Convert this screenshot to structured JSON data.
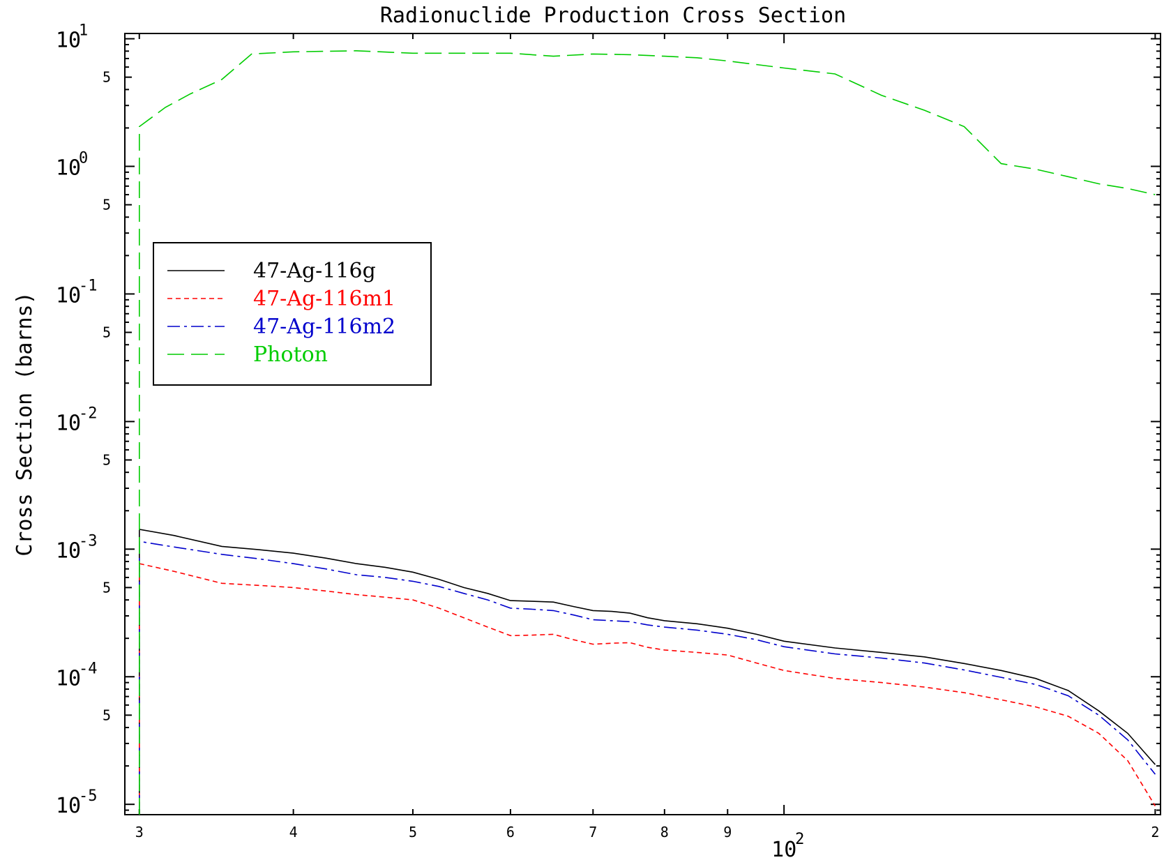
{
  "chart_data": {
    "type": "line",
    "title": "Radionuclide Production Cross Section",
    "xlabel": "",
    "ylabel": "Cross Section (barns)",
    "xscale": "log",
    "yscale": "log",
    "xlim": [
      29.2,
      202
    ],
    "ylim": [
      8.3e-06,
      11
    ],
    "x_ticks": [
      {
        "value": 30,
        "label": "3"
      },
      {
        "value": 40,
        "label": "4"
      },
      {
        "value": 50,
        "label": "5"
      },
      {
        "value": 60,
        "label": "6"
      },
      {
        "value": 70,
        "label": "7"
      },
      {
        "value": 80,
        "label": "8"
      },
      {
        "value": 90,
        "label": "9"
      },
      {
        "value": 100,
        "label": "10",
        "exp": "2"
      },
      {
        "value": 200,
        "label": "2"
      }
    ],
    "y_ticks": [
      {
        "value": 10,
        "label": "10",
        "exp": "1"
      },
      {
        "value": 5,
        "label": "5"
      },
      {
        "value": 1,
        "label": "10",
        "exp": "0"
      },
      {
        "value": 0.5,
        "label": "5"
      },
      {
        "value": 0.1,
        "label": "10",
        "exp": "-1"
      },
      {
        "value": 0.05,
        "label": "5"
      },
      {
        "value": 0.01,
        "label": "10",
        "exp": "-2"
      },
      {
        "value": 0.005,
        "label": "5"
      },
      {
        "value": 0.001,
        "label": "10",
        "exp": "-3"
      },
      {
        "value": 0.0005,
        "label": "5"
      },
      {
        "value": 0.0001,
        "label": "10",
        "exp": "-4"
      },
      {
        "value": 5e-05,
        "label": "5"
      },
      {
        "value": 1e-05,
        "label": "10",
        "exp": "-5"
      }
    ],
    "legend_position": "upper-left",
    "series": [
      {
        "name": "47-Ag-116g",
        "color": "#000000",
        "style": "solid",
        "points": [
          [
            30,
            8.3e-06
          ],
          [
            30,
            0.00143
          ],
          [
            32,
            0.00128
          ],
          [
            35,
            0.00105
          ],
          [
            37.5,
            0.00099
          ],
          [
            40,
            0.00093
          ],
          [
            42.5,
            0.00085
          ],
          [
            45,
            0.00077
          ],
          [
            47.5,
            0.00072
          ],
          [
            50,
            0.00066
          ],
          [
            52.5,
            0.00058
          ],
          [
            55,
            0.0005
          ],
          [
            57.5,
            0.00045
          ],
          [
            60,
            0.000395
          ],
          [
            62.5,
            0.00039
          ],
          [
            65,
            0.000385
          ],
          [
            67.5,
            0.000355
          ],
          [
            70,
            0.00033
          ],
          [
            72.5,
            0.000325
          ],
          [
            75,
            0.000315
          ],
          [
            77.5,
            0.00029
          ],
          [
            80,
            0.000275
          ],
          [
            85,
            0.00026
          ],
          [
            90,
            0.00024
          ],
          [
            95,
            0.000215
          ],
          [
            100,
            0.00019
          ],
          [
            110,
            0.000168
          ],
          [
            120,
            0.000155
          ],
          [
            130,
            0.000143
          ],
          [
            140,
            0.000127
          ],
          [
            150,
            0.000112
          ],
          [
            160,
            9.7e-05
          ],
          [
            170,
            7.8e-05
          ],
          [
            180,
            5.4e-05
          ],
          [
            190,
            3.6e-05
          ],
          [
            200,
            2.05e-05
          ]
        ]
      },
      {
        "name": "47-Ag-116m1",
        "color": "#ff0000",
        "style": "dashed",
        "points": [
          [
            30,
            8.3e-06
          ],
          [
            30,
            0.00077
          ],
          [
            32,
            0.00067
          ],
          [
            35,
            0.00054
          ],
          [
            37.5,
            0.00052
          ],
          [
            40,
            0.0005
          ],
          [
            42.5,
            0.00047
          ],
          [
            45,
            0.00044
          ],
          [
            47.5,
            0.00042
          ],
          [
            50,
            0.0004
          ],
          [
            52.5,
            0.000345
          ],
          [
            55,
            0.00029
          ],
          [
            57.5,
            0.000245
          ],
          [
            60,
            0.00021
          ],
          [
            62.5,
            0.000212
          ],
          [
            65,
            0.000215
          ],
          [
            67.5,
            0.000195
          ],
          [
            70,
            0.00018
          ],
          [
            72.5,
            0.000183
          ],
          [
            75,
            0.000185
          ],
          [
            77.5,
            0.00017
          ],
          [
            80,
            0.000162
          ],
          [
            85,
            0.000155
          ],
          [
            90,
            0.000148
          ],
          [
            95,
            0.000128
          ],
          [
            100,
            0.000112
          ],
          [
            110,
            9.7e-05
          ],
          [
            120,
            9e-05
          ],
          [
            130,
            8.3e-05
          ],
          [
            140,
            7.5e-05
          ],
          [
            150,
            6.6e-05
          ],
          [
            160,
            5.8e-05
          ],
          [
            170,
            4.9e-05
          ],
          [
            180,
            3.6e-05
          ],
          [
            190,
            2.2e-05
          ],
          [
            200,
            9.7e-06
          ]
        ]
      },
      {
        "name": "47-Ag-116m2",
        "color": "#0000cc",
        "style": "dashdot",
        "points": [
          [
            30,
            8.3e-06
          ],
          [
            30,
            0.00115
          ],
          [
            32,
            0.00104
          ],
          [
            35,
            0.00091
          ],
          [
            37.5,
            0.00084
          ],
          [
            40,
            0.00077
          ],
          [
            42.5,
            0.0007
          ],
          [
            45,
            0.00063
          ],
          [
            47.5,
            0.0006
          ],
          [
            50,
            0.00056
          ],
          [
            52.5,
            0.00051
          ],
          [
            55,
            0.00045
          ],
          [
            57.5,
            0.0004
          ],
          [
            60,
            0.000345
          ],
          [
            62.5,
            0.000338
          ],
          [
            65,
            0.00033
          ],
          [
            67.5,
            0.000305
          ],
          [
            70,
            0.00028
          ],
          [
            72.5,
            0.000275
          ],
          [
            75,
            0.00027
          ],
          [
            77.5,
            0.000255
          ],
          [
            80,
            0.000245
          ],
          [
            85,
            0.000232
          ],
          [
            90,
            0.000215
          ],
          [
            95,
            0.000195
          ],
          [
            100,
            0.000172
          ],
          [
            110,
            0.000151
          ],
          [
            120,
            0.00014
          ],
          [
            130,
            0.000128
          ],
          [
            140,
            0.000113
          ],
          [
            150,
            9.9e-05
          ],
          [
            160,
            8.7e-05
          ],
          [
            170,
            7.1e-05
          ],
          [
            180,
            5e-05
          ],
          [
            190,
            3.2e-05
          ],
          [
            200,
            1.72e-05
          ]
        ]
      },
      {
        "name": "Photon",
        "color": "#00cc00",
        "style": "longdash",
        "points": [
          [
            30,
            8.3e-06
          ],
          [
            30,
            2.05
          ],
          [
            31.5,
            2.9
          ],
          [
            33,
            3.7
          ],
          [
            35,
            4.8
          ],
          [
            37,
            7.6
          ],
          [
            40,
            7.9
          ],
          [
            45,
            8.05
          ],
          [
            50,
            7.7
          ],
          [
            55,
            7.7
          ],
          [
            60,
            7.7
          ],
          [
            65,
            7.3
          ],
          [
            70,
            7.6
          ],
          [
            75,
            7.5
          ],
          [
            80,
            7.3
          ],
          [
            85,
            7.1
          ],
          [
            90,
            6.7
          ],
          [
            100,
            5.9
          ],
          [
            110,
            5.3
          ],
          [
            120,
            3.6
          ],
          [
            130,
            2.75
          ],
          [
            140,
            2.05
          ],
          [
            150,
            1.05
          ],
          [
            160,
            0.95
          ],
          [
            170,
            0.83
          ],
          [
            180,
            0.73
          ],
          [
            190,
            0.67
          ],
          [
            200,
            0.6
          ]
        ]
      }
    ]
  }
}
